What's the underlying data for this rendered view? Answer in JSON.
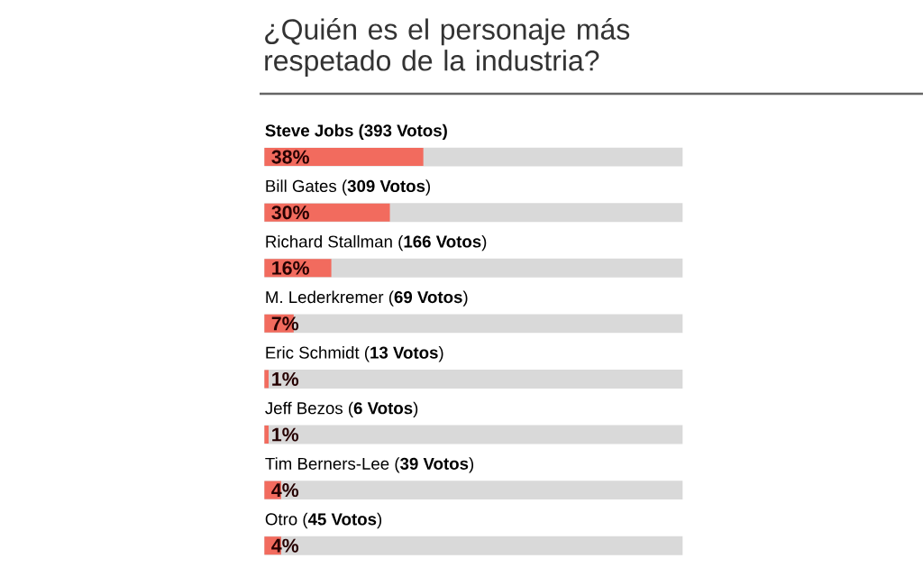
{
  "chart_data": {
    "type": "bar",
    "orientation": "horizontal",
    "title": "¿Quién es el personaje más respetado de la industria?",
    "categories": [
      "**Steve Jobs (393 Votos)**",
      "Bill Gates (**309 Votos**)",
      "Richard Stallman (**166 Votos**)",
      "M. Lederkremer (**69 Votos**)",
      "Eric Schmidt (**13 Votos**)",
      "Jeff Bezos (**6 Votos**)",
      "Tim Berners-Lee (**39 Votos**)",
      "Otro (**45 Votos**)"
    ],
    "values": [
      38,
      30,
      16,
      7,
      1,
      1,
      4,
      4
    ],
    "value_labels": [
      "38%",
      "30%",
      "16%",
      "7%",
      "1%",
      "1%",
      "4%",
      "4%"
    ],
    "color": "#f26b5e",
    "xlim": [
      0,
      100
    ]
  }
}
